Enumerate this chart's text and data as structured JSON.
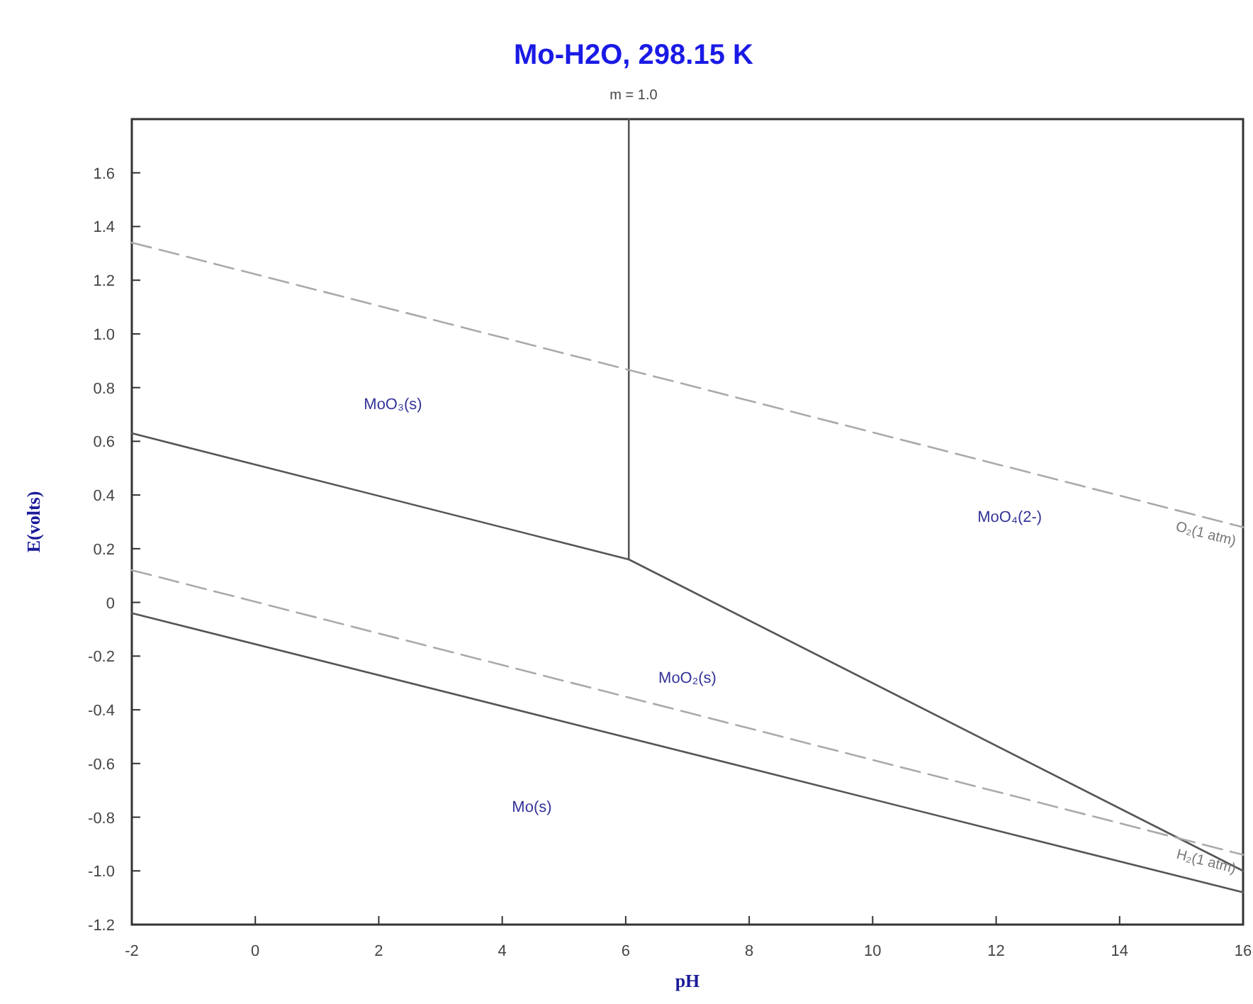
{
  "chart_data": {
    "type": "line",
    "title": "Mo-H2O, 298.15 K",
    "subtitle": "m = 1.0",
    "xlabel": "pH",
    "ylabel": "E(volts)",
    "xlim": [
      -2,
      16
    ],
    "ylim": [
      -1.2,
      1.8
    ],
    "xticks": [
      -2,
      0,
      2,
      4,
      6,
      8,
      10,
      12,
      14,
      16
    ],
    "yticks": [
      {
        "value": -1.2,
        "label": "-1.2"
      },
      {
        "value": -1,
        "label": "-1.0"
      },
      -0.8,
      -0.6,
      -0.4,
      -0.2,
      0,
      0.2,
      0.4,
      0.6,
      0.8,
      {
        "value": 1,
        "label": "1.0"
      },
      1.2,
      1.4,
      1.6
    ],
    "grid": false,
    "marker": "none",
    "series": [
      {
        "color": "#555555",
        "line_style": "solid",
        "x": [
          6.05,
          6.05
        ],
        "values": [
          1.8,
          0.16
        ]
      },
      {
        "color": "#555555",
        "line_style": "solid",
        "x": [
          -2,
          6.05,
          16
        ],
        "values": [
          0.63,
          0.16,
          -1.0
        ]
      },
      {
        "color": "#555555",
        "line_style": "solid",
        "x": [
          -2,
          16
        ],
        "values": [
          -0.04,
          -1.08
        ]
      },
      {
        "name": "O₂(1 atm)",
        "color": "#aaaaaa",
        "line_style": "dashed",
        "x": [
          -2,
          16
        ],
        "values": [
          1.34,
          0.28
        ]
      },
      {
        "name": "H₂(1 atm)",
        "color": "#aaaaaa",
        "line_style": "dashed",
        "x": [
          -2,
          16
        ],
        "values": [
          0.12,
          -0.94
        ]
      }
    ],
    "annotations": [
      "MoO₃(s)",
      "MoO₄(2-)",
      "MoO₂(s)",
      "Mo(s)"
    ]
  }
}
